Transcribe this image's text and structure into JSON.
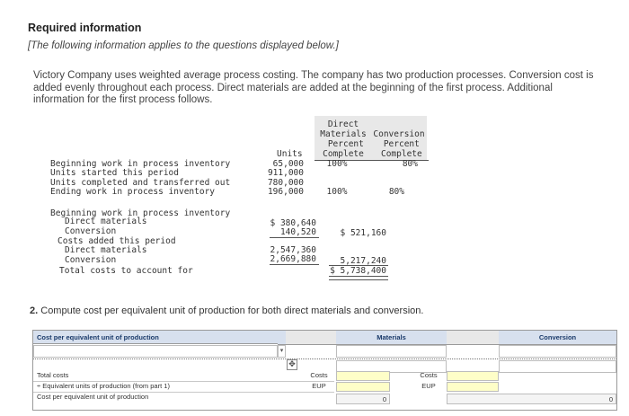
{
  "header": {
    "title": "Required information",
    "note": "[The following information applies to the questions displayed below.]"
  },
  "intro": "Victory Company uses weighted average process costing. The company has two production processes. Conversion cost is added evenly throughout each process. Direct materials are added at the beginning of the first process. Additional information for the first process follows.",
  "units_table": {
    "col_direct": "Direct\nMaterials\n Percent\nComplete",
    "col_conversion": "Conversion\n Percent\n Complete",
    "col_units": "Units",
    "rows": [
      {
        "label": "Beginning work in process inventory",
        "units": "65,000",
        "dm": "100%",
        "conv": "80%"
      },
      {
        "label": "Units started this period",
        "units": "911,000",
        "dm": "",
        "conv": ""
      },
      {
        "label": "Units completed and transferred out",
        "units": "780,000",
        "dm": "",
        "conv": ""
      },
      {
        "label": "Ending work in process inventory",
        "units": "196,000",
        "dm": "100%",
        "conv": "80%"
      }
    ]
  },
  "costs": {
    "beg_wip_label": "Beginning work in process inventory",
    "dm_label": "Direct materials",
    "conv_label": "Conversion",
    "beg_dm": "$ 380,640",
    "beg_conv": "140,520",
    "beg_total": "$ 521,160",
    "added_label": "Costs added this period",
    "added_dm_label": "Direct materials",
    "added_conv_label": "Conversion",
    "added_dm": "2,547,360",
    "added_conv": "2,669,880",
    "added_total": "5,217,240",
    "total_label": "Total costs to account for",
    "grand_total": "$ 5,738,400"
  },
  "question": {
    "number": "2.",
    "text": "Compute cost per equivalent unit of production for both direct materials and conversion."
  },
  "answer_table": {
    "header_label": "Cost per equivalent unit of production",
    "materials_label": "Materials",
    "conversion_label": "Conversion",
    "rows": [
      {
        "label": "Total costs",
        "mid": "Costs"
      },
      {
        "label": "÷ Equivalent units of production (from part 1)",
        "mid": "EUP"
      },
      {
        "label": "Cost per equivalent unit of production",
        "mid": ""
      }
    ],
    "materials_result": "0",
    "conversion_result": "0"
  },
  "icons": {
    "move": "move-cursor-icon",
    "dropdown": "dropdown-arrow-icon"
  }
}
